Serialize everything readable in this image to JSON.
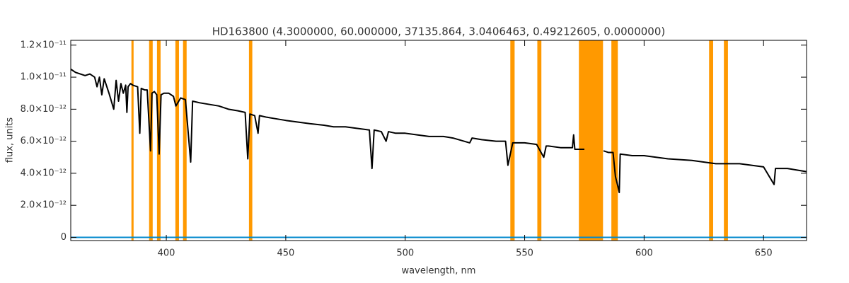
{
  "chart_data": {
    "type": "line",
    "title": "HD163800    (4.3000000, 60.000000, 37135.864, 3.0406463, 0.49212605, 0.0000000)",
    "x_label": "wavelength, nm",
    "y_label": "flux, units",
    "xlim": [
      360,
      668
    ],
    "ylim": [
      -2e-13,
      1.23e-11
    ],
    "xticks": [
      400,
      450,
      500,
      550,
      600,
      650
    ],
    "yticks": [
      0,
      {
        "value": 2e-12,
        "label": "2.0×10⁻¹²"
      },
      {
        "value": 4e-12,
        "label": "4.0×10⁻¹²"
      },
      {
        "value": 6e-12,
        "label": "6.0×10⁻¹²"
      },
      {
        "value": 8e-12,
        "label": "8.0×10⁻¹²"
      },
      {
        "value": 1e-11,
        "label": "1.0×10⁻¹¹"
      },
      {
        "value": 1.2e-11,
        "label": "1.2×10⁻¹¹"
      }
    ],
    "band_color": "#ff9900",
    "bands": [
      [
        385.4,
        386.3
      ],
      [
        392.8,
        394.3
      ],
      [
        396.1,
        397.6
      ],
      [
        403.8,
        405.3
      ],
      [
        407.0,
        408.5
      ],
      [
        434.6,
        436.0
      ],
      [
        544.0,
        545.8
      ],
      [
        555.3,
        557.0
      ],
      [
        572.7,
        582.8
      ],
      [
        586.3,
        589.0
      ],
      [
        627.2,
        628.9
      ],
      [
        633.4,
        635.1
      ]
    ],
    "series": [
      {
        "color": "#000000",
        "x": [
          360,
          362,
          364,
          366,
          368,
          370,
          371,
          372,
          373,
          374,
          376,
          378,
          379,
          380,
          381,
          382,
          383,
          383.5,
          384,
          385,
          386,
          388,
          388.9,
          389.5,
          391,
          392,
          393.4,
          394,
          395,
          396,
          397,
          397.8,
          399,
          401,
          403,
          404,
          406,
          408,
          410.2,
          411,
          414,
          418,
          422,
          426,
          430,
          433,
          434.1,
          435,
          437,
          438.4,
          439,
          442,
          446,
          450,
          455,
          460,
          466,
          470,
          475,
          480,
          485,
          486.1,
          487,
          490,
          492,
          493,
          496,
          500,
          505,
          510,
          516,
          520,
          527,
          528,
          532,
          538,
          540,
          542,
          543,
          545,
          550,
          555,
          558,
          559,
          560,
          565,
          570,
          570.5,
          571,
          575,
          578,
          583,
          585,
          587,
          588,
          589,
          589.6,
          590,
          595,
          600,
          610,
          620,
          630,
          640,
          645,
          650,
          654.4,
          655,
          660,
          664,
          668
        ],
        "values": [
          1.05e-11,
          1.03e-11,
          1.02e-11,
          1.01e-11,
          1.02e-11,
          1e-11,
          9.4e-12,
          1e-11,
          8.9e-12,
          9.9e-12,
          9e-12,
          8e-12,
          9.8e-12,
          8.5e-12,
          9.6e-12,
          9e-12,
          9.5e-12,
          7.8e-12,
          9.4e-12,
          9.6e-12,
          9.5e-12,
          9.4e-12,
          6.5e-12,
          9.3e-12,
          9.2e-12,
          9.2e-12,
          5.4e-12,
          9e-12,
          9.1e-12,
          8.9e-12,
          5.2e-12,
          8.9e-12,
          9e-12,
          9e-12,
          8.8e-12,
          8.2e-12,
          8.7e-12,
          8.6e-12,
          4.7e-12,
          8.5e-12,
          8.4e-12,
          8.3e-12,
          8.2e-12,
          8e-12,
          7.9e-12,
          7.8e-12,
          4.9e-12,
          7.7e-12,
          7.6e-12,
          6.5e-12,
          7.6e-12,
          7.5e-12,
          7.4e-12,
          7.3e-12,
          7.2e-12,
          7.1e-12,
          7e-12,
          6.9e-12,
          6.9e-12,
          6.8e-12,
          6.7e-12,
          4.3e-12,
          6.7e-12,
          6.6e-12,
          6e-12,
          6.6e-12,
          6.5e-12,
          6.5e-12,
          6.4e-12,
          6.3e-12,
          6.3e-12,
          6.2e-12,
          5.9e-12,
          6.2e-12,
          6.1e-12,
          6e-12,
          6e-12,
          6e-12,
          4.5e-12,
          5.9e-12,
          5.9e-12,
          5.8e-12,
          5e-12,
          5.7e-12,
          5.7e-12,
          5.6e-12,
          5.6e-12,
          6.4e-12,
          5.5e-12,
          5.5e-12,
          null,
          5.4e-12,
          5.3e-12,
          5.3e-12,
          3.8e-12,
          3.2e-12,
          2.8e-12,
          5.2e-12,
          5.1e-12,
          5.1e-12,
          4.9e-12,
          4.8e-12,
          4.6e-12,
          4.6e-12,
          4.5e-12,
          4.4e-12,
          3.3e-12,
          4.3e-12,
          4.3e-12,
          4.2e-12,
          4.1e-12
        ]
      },
      {
        "color": "#0088cc",
        "x": [
          360,
          668
        ],
        "values": [
          0,
          0
        ]
      }
    ]
  }
}
